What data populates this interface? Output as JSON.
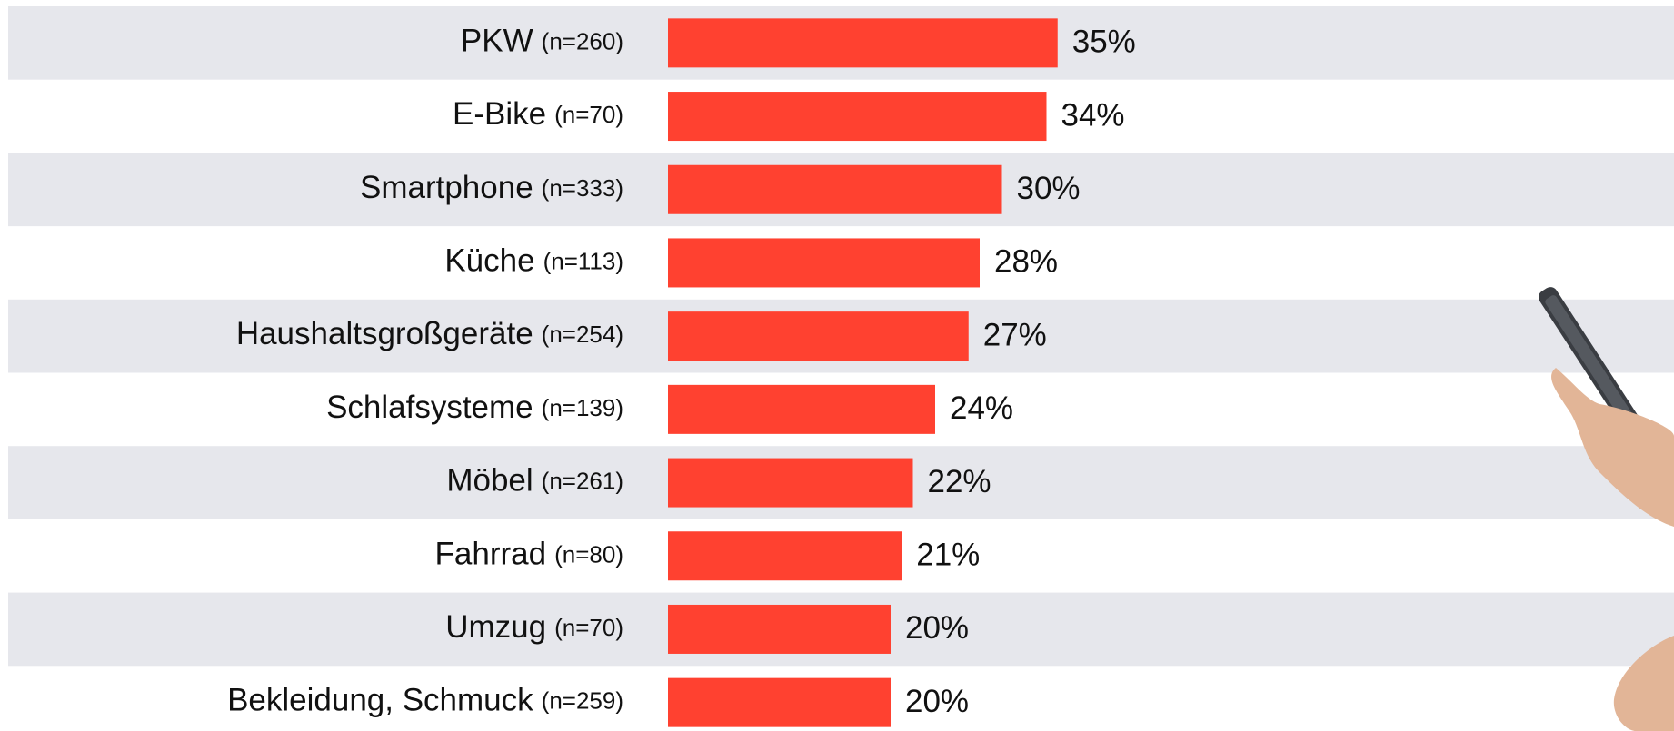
{
  "chart_data": {
    "type": "bar",
    "orientation": "horizontal",
    "categories": [
      "PKW",
      "E-Bike",
      "Smartphone",
      "Küche",
      "Haushaltsgroßgeräte",
      "Schlafsysteme",
      "Möbel",
      "Fahrrad",
      "Umzug",
      "Bekleidung, Schmuck"
    ],
    "sample_sizes": [
      "(n=260)",
      "(n=70)",
      "(n=333)",
      "(n=113)",
      "(n=254)",
      "(n=139)",
      "(n=261)",
      "(n=80)",
      "(n=70)",
      "(n=259)"
    ],
    "values": [
      35,
      34,
      30,
      28,
      27,
      24,
      22,
      21,
      20,
      20
    ],
    "value_labels": [
      "35%",
      "34%",
      "30%",
      "28%",
      "27%",
      "24%",
      "22%",
      "21%",
      "20%",
      "20%"
    ],
    "color": "#ff4130"
  }
}
